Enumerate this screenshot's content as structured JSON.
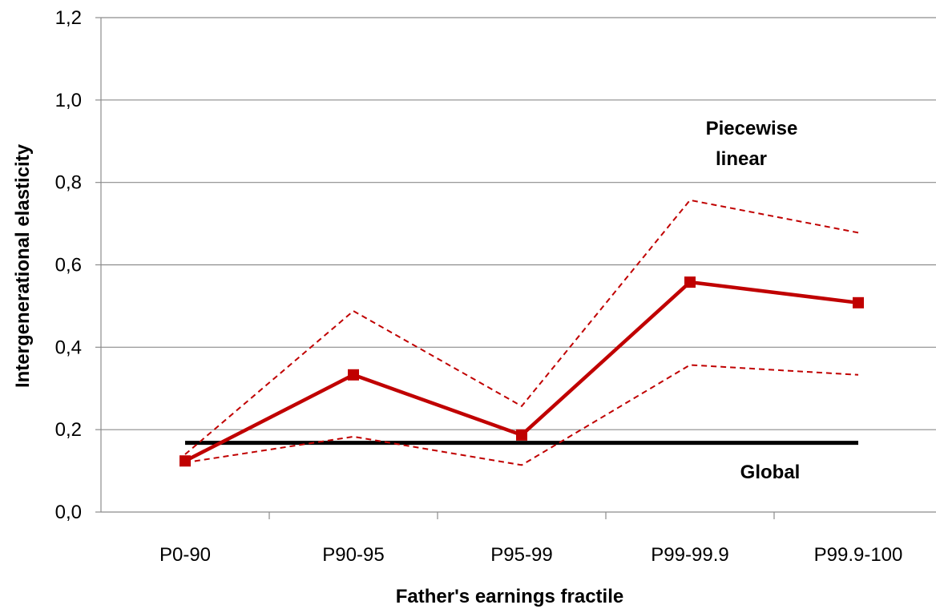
{
  "chart_data": {
    "type": "line",
    "categories": [
      "P0-90",
      "P90-95",
      "P95-99",
      "P99-99.9",
      "P99.9-100"
    ],
    "xlabel": "Father's earnings fractile",
    "ylabel": "Intergenerational elasticity",
    "ylim": [
      0,
      1.2
    ],
    "yticks": [
      "0,0",
      "0,2",
      "0,4",
      "0,6",
      "0,8",
      "1,0",
      "1,2"
    ],
    "ytick_values": [
      0,
      0.2,
      0.4,
      0.6,
      0.8,
      1.0,
      1.2
    ],
    "grid": true,
    "series": [
      {
        "key": "piecewise",
        "values": [
          0.124,
          0.333,
          0.187,
          0.558,
          0.508
        ],
        "color": "#C00000",
        "style": "solid-markers"
      },
      {
        "key": "upper_ci",
        "values": [
          0.14,
          0.488,
          0.257,
          0.757,
          0.678
        ],
        "color": "#C00000",
        "style": "dashed"
      },
      {
        "key": "lower_ci",
        "values": [
          0.12,
          0.183,
          0.114,
          0.357,
          0.333
        ],
        "color": "#C00000",
        "style": "dashed"
      },
      {
        "key": "global",
        "values": [
          0.168,
          0.168,
          0.168,
          0.168,
          0.168
        ],
        "color": "#000000",
        "style": "solid-thick"
      }
    ],
    "annotations": {
      "piecewise_line1": "Piecewise",
      "piecewise_line2": "linear",
      "global": "Global"
    }
  }
}
